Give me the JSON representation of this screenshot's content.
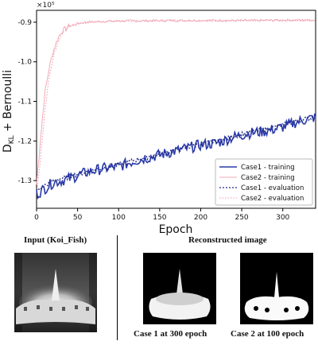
{
  "chart_data": {
    "type": "line",
    "y_multiplier_label": "×10⁵",
    "xlabel": "Epoch",
    "ylabel_main": "D",
    "ylabel_sub": "KL",
    "ylabel_rest": " + Bernoulli",
    "xlim": [
      0,
      340
    ],
    "ylim": [
      -1.37,
      -0.87
    ],
    "x_ticks": [
      0,
      50,
      100,
      150,
      200,
      250,
      300
    ],
    "y_ticks": [
      -1.3,
      -1.2,
      -1.1,
      -1.0,
      -0.9
    ],
    "y_tick_labels": [
      "-1.3",
      "-1.2",
      "-1.1",
      "-1.0",
      "-0.9"
    ],
    "legend_position": "lower-right",
    "series": [
      {
        "name": "Case1 - training",
        "color": "#2b3aa8",
        "style": "solid",
        "x": [
          0,
          20,
          40,
          60,
          80,
          100,
          120,
          140,
          160,
          180,
          200,
          220,
          240,
          260,
          280,
          300,
          320,
          340
        ],
        "y": [
          -1.335,
          -1.305,
          -1.295,
          -1.28,
          -1.27,
          -1.265,
          -1.25,
          -1.24,
          -1.23,
          -1.22,
          -1.21,
          -1.205,
          -1.19,
          -1.18,
          -1.175,
          -1.165,
          -1.15,
          -1.14
        ]
      },
      {
        "name": "Case2 - training",
        "color": "#f4a9b8",
        "style": "solid",
        "x": [
          0,
          5,
          10,
          15,
          20,
          25,
          30,
          40,
          50,
          60,
          80,
          100,
          150,
          200,
          250,
          300,
          340
        ],
        "y": [
          -1.31,
          -1.19,
          -1.08,
          -1.02,
          -0.975,
          -0.945,
          -0.925,
          -0.91,
          -0.903,
          -0.9,
          -0.898,
          -0.897,
          -0.896,
          -0.895,
          -0.896,
          -0.895,
          -0.895
        ]
      },
      {
        "name": "Case1 - evaluation",
        "color": "#1f2a8a",
        "style": "dotted",
        "x": [
          0,
          20,
          40,
          60,
          80,
          100,
          120,
          140,
          160,
          180,
          200,
          220,
          240,
          260,
          280,
          300,
          320,
          340
        ],
        "y": [
          -1.325,
          -1.3,
          -1.29,
          -1.278,
          -1.268,
          -1.26,
          -1.248,
          -1.238,
          -1.228,
          -1.218,
          -1.208,
          -1.2,
          -1.188,
          -1.178,
          -1.17,
          -1.16,
          -1.148,
          -1.138
        ]
      },
      {
        "name": "Case2 - evaluation",
        "color": "#e89aa8",
        "style": "dotted",
        "x": [
          0,
          5,
          10,
          15,
          20,
          25,
          30,
          40,
          50,
          60,
          80,
          100,
          150,
          200,
          250,
          300,
          340
        ],
        "y": [
          -1.33,
          -1.24,
          -1.13,
          -1.04,
          -0.99,
          -0.955,
          -0.93,
          -0.912,
          -0.905,
          -0.901,
          -0.899,
          -0.897,
          -0.896,
          -0.896,
          -0.896,
          -0.895,
          -0.895
        ]
      }
    ]
  },
  "images": {
    "input_caption": "Input (Koi_Fish)",
    "recon_header": "Reconstructed image",
    "case1_caption": "Case 1 at 300 epoch",
    "case2_caption": "Case 2 at 100 epoch"
  }
}
